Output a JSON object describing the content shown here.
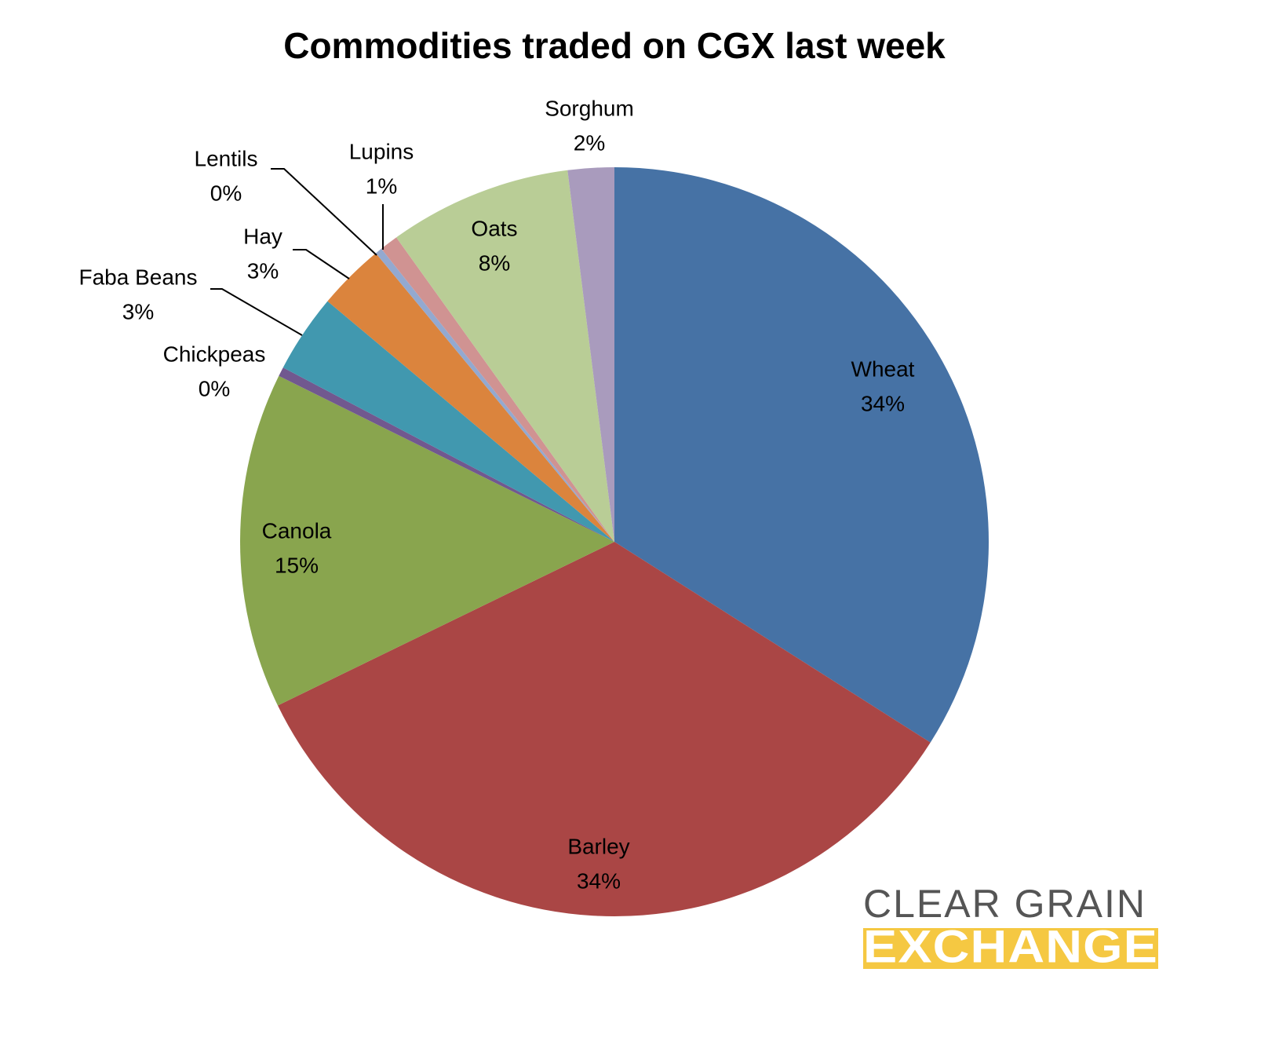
{
  "chart_data": {
    "type": "pie",
    "title": "Commodities traded on CGX last week",
    "categories": [
      "Wheat",
      "Barley",
      "Canola",
      "Chickpeas",
      "Faba Beans",
      "Hay",
      "Lentils",
      "Lupins",
      "Oats",
      "Sorghum"
    ],
    "values": [
      34.0,
      33.8,
      14.5,
      0.4,
      3.4,
      2.9,
      0.3,
      0.8,
      7.9,
      2.0
    ],
    "value_labels": [
      "34%",
      "34%",
      "15%",
      "0%",
      "3%",
      "3%",
      "0%",
      "1%",
      "8%",
      "2%"
    ],
    "colors": [
      "#4672a5",
      "#aa4645",
      "#89a54e",
      "#71588f",
      "#4198af",
      "#db843d",
      "#93a9d0",
      "#d09392",
      "#b9cd96",
      "#a99bbd"
    ]
  },
  "logo": {
    "line1": "CLEAR GRAIN",
    "line2": "EXCHANGE"
  }
}
